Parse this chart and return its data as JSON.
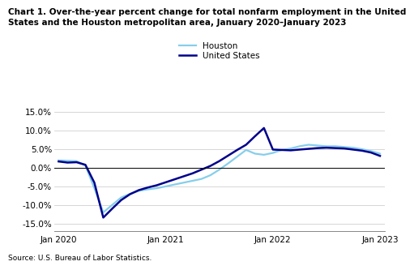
{
  "title_line1": "Chart 1. Over-the-year percent change for total nonfarm employment in the United",
  "title_line2": "States and the Houston metropolitan area, January 2020–January 2023",
  "source": "Source: U.S. Bureau of Labor Statistics.",
  "legend_labels": [
    "United States",
    "Houston"
  ],
  "us_color": "#00008B",
  "houston_color": "#87CEEB",
  "ylim": [
    -17,
    17
  ],
  "yticks": [
    -15.0,
    -10.0,
    -5.0,
    0.0,
    5.0,
    10.0,
    15.0
  ],
  "xtick_labels": [
    "Jan 2020",
    "Jan 2021",
    "Jan 2022",
    "Jan 2023"
  ],
  "months": 37,
  "us_data": [
    1.7,
    1.4,
    1.5,
    0.8,
    -4.0,
    -13.4,
    -11.0,
    -8.7,
    -7.1,
    -6.0,
    -5.3,
    -4.7,
    -3.9,
    -3.1,
    -2.3,
    -1.5,
    -0.5,
    0.5,
    1.8,
    3.3,
    4.8,
    6.2,
    8.5,
    10.7,
    4.9,
    4.8,
    4.7,
    4.9,
    5.1,
    5.3,
    5.4,
    5.3,
    5.2,
    4.9,
    4.6,
    4.1,
    3.2
  ],
  "houston_data": [
    2.0,
    1.9,
    1.8,
    0.6,
    -5.5,
    -12.0,
    -10.0,
    -8.0,
    -7.0,
    -6.2,
    -5.8,
    -5.5,
    -5.0,
    -4.5,
    -4.0,
    -3.5,
    -3.0,
    -2.0,
    -0.5,
    1.2,
    3.0,
    4.8,
    3.8,
    3.5,
    4.0,
    4.8,
    5.2,
    5.8,
    6.2,
    6.0,
    5.8,
    5.8,
    5.6,
    5.4,
    5.0,
    4.5,
    3.8
  ]
}
